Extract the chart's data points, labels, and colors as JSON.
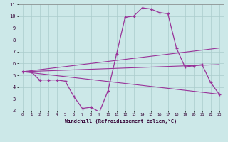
{
  "xlabel": "Windchill (Refroidissement éolien,°C)",
  "background_color": "#cce8e8",
  "line_color": "#993399",
  "xlim": [
    -0.5,
    23.5
  ],
  "ylim": [
    2,
    11
  ],
  "yticks": [
    2,
    3,
    4,
    5,
    6,
    7,
    8,
    9,
    10,
    11
  ],
  "xticks": [
    0,
    1,
    2,
    3,
    4,
    5,
    6,
    7,
    8,
    9,
    10,
    11,
    12,
    13,
    14,
    15,
    16,
    17,
    18,
    19,
    20,
    21,
    22,
    23
  ],
  "line1_x": [
    0,
    1,
    2,
    3,
    4,
    5,
    6,
    7,
    8,
    9,
    10,
    11,
    12,
    13,
    14,
    15,
    16,
    17,
    18,
    19,
    20,
    21,
    22,
    23
  ],
  "line1_y": [
    5.3,
    5.3,
    4.6,
    4.6,
    4.6,
    4.5,
    3.2,
    2.2,
    2.3,
    1.9,
    3.7,
    6.8,
    9.9,
    10.0,
    10.7,
    10.6,
    10.3,
    10.2,
    7.3,
    5.7,
    5.8,
    5.9,
    4.4,
    3.4
  ],
  "line2_x": [
    0,
    23
  ],
  "line2_y": [
    5.3,
    3.4
  ],
  "line3_x": [
    0,
    23
  ],
  "line3_y": [
    5.3,
    7.3
  ],
  "line4_x": [
    0,
    23
  ],
  "line4_y": [
    5.3,
    5.9
  ],
  "xlabel_color": "#330033",
  "tick_color": "#330033",
  "grid_color": "#aacccc"
}
